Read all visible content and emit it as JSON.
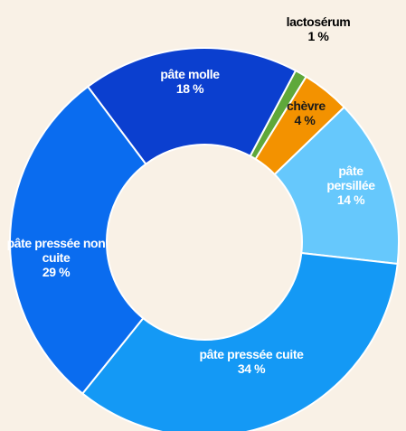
{
  "chart_data": {
    "type": "donut",
    "categories": [
      "lactosérum",
      "chèvre",
      "pâte persillée",
      "pâte pressée cuite",
      "pâte pressée non cuite",
      "pâte molle"
    ],
    "values": [
      1,
      4,
      14,
      34,
      29,
      18
    ],
    "value_labels": [
      "1 %",
      "4 %",
      "14 %",
      "34 %",
      "29 %",
      "18 %"
    ],
    "colors": [
      "#5fa83a",
      "#f39200",
      "#66c8fc",
      "#1499f5",
      "#0a6cef",
      "#0b3fcf"
    ],
    "label_colors": [
      "#000000",
      "#1a1a1a",
      "#ffffff",
      "#ffffff",
      "#ffffff",
      "#ffffff"
    ]
  }
}
